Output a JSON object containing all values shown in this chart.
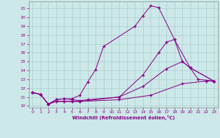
{
  "xlabel": "Windchill (Refroidissement éolien,°C)",
  "background_color": "#cce8e8",
  "grid_color": "#aacccc",
  "line_color": "#880088",
  "xlim": [
    -0.5,
    23.5
  ],
  "ylim": [
    9.8,
    21.8
  ],
  "xticks": [
    0,
    1,
    2,
    3,
    4,
    5,
    6,
    7,
    8,
    9,
    10,
    11,
    12,
    13,
    14,
    15,
    16,
    17,
    18,
    19,
    20,
    21,
    22,
    23
  ],
  "yticks": [
    10,
    11,
    12,
    13,
    14,
    15,
    16,
    17,
    18,
    19,
    20,
    21
  ],
  "line1_x": [
    0,
    1,
    2,
    3,
    4,
    5,
    6,
    7,
    8,
    9,
    13,
    14,
    15,
    16,
    18,
    19,
    20,
    21,
    23
  ],
  "line1_y": [
    11.5,
    11.3,
    10.2,
    10.7,
    10.8,
    10.8,
    11.2,
    12.7,
    14.1,
    16.7,
    19.0,
    20.2,
    21.3,
    21.1,
    17.5,
    15.0,
    14.3,
    13.0,
    12.8
  ],
  "line2_x": [
    0,
    1,
    2,
    3,
    4,
    5,
    6,
    7,
    11,
    14,
    16,
    17,
    18,
    20,
    23
  ],
  "line2_y": [
    11.5,
    11.3,
    10.2,
    10.7,
    10.8,
    10.7,
    10.6,
    10.7,
    11.0,
    13.5,
    16.0,
    17.2,
    17.5,
    14.3,
    12.8
  ],
  "line3_x": [
    0,
    1,
    2,
    3,
    4,
    5,
    6,
    11,
    14,
    17,
    19,
    20,
    23
  ],
  "line3_y": [
    11.5,
    11.3,
    10.2,
    10.5,
    10.5,
    10.5,
    10.5,
    11.0,
    12.2,
    14.2,
    15.0,
    14.3,
    12.8
  ],
  "line4_x": [
    0,
    1,
    2,
    3,
    4,
    5,
    6,
    11,
    15,
    19,
    22,
    23
  ],
  "line4_y": [
    11.5,
    11.3,
    10.2,
    10.5,
    10.5,
    10.5,
    10.5,
    10.7,
    11.2,
    12.5,
    12.8,
    12.8
  ]
}
